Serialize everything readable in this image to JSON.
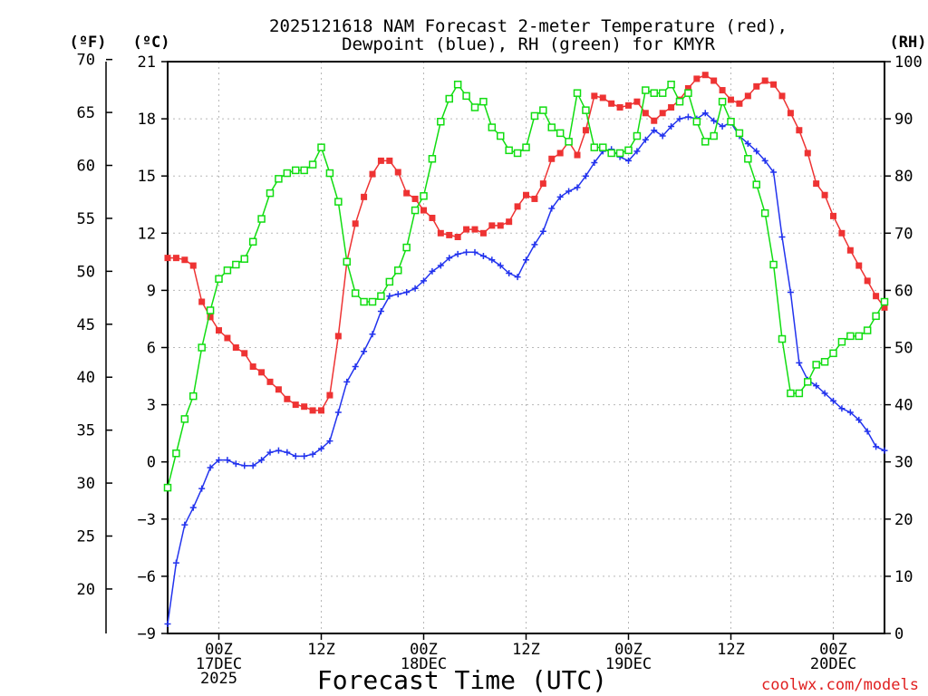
{
  "chart_data": {
    "type": "line",
    "title_line1": "2025121618 NAM Forecast 2-meter Temperature (red),",
    "title_line2": "Dewpoint (blue), RH (green) for KMYR",
    "xlabel": "Forecast Time (UTC)",
    "credit": "coolwx.com/models",
    "left_f_unit": "(ºF)",
    "left_c_unit": "(ºC)",
    "right_unit": "(RH)",
    "x_unit": "hours since 2025121618",
    "xlim": [
      0,
      84
    ],
    "celsius_axis": {
      "ylim": [
        -9,
        21
      ],
      "ticks": [
        -9,
        -6,
        -3,
        0,
        3,
        6,
        9,
        12,
        15,
        18,
        21
      ]
    },
    "fahrenheit_ticks": [
      20,
      25,
      30,
      35,
      40,
      45,
      50,
      55,
      60,
      65,
      70
    ],
    "rh_axis": {
      "ylim": [
        0,
        100
      ],
      "ticks": [
        0,
        10,
        20,
        30,
        40,
        50,
        60,
        70,
        80,
        90,
        100
      ]
    },
    "x_ticks": [
      {
        "hour": 6,
        "labels": [
          "00Z",
          "17DEC",
          "2025"
        ]
      },
      {
        "hour": 18,
        "labels": [
          "12Z"
        ]
      },
      {
        "hour": 30,
        "labels": [
          "00Z",
          "18DEC"
        ]
      },
      {
        "hour": 42,
        "labels": [
          "12Z"
        ]
      },
      {
        "hour": 54,
        "labels": [
          "00Z",
          "19DEC"
        ]
      },
      {
        "hour": 66,
        "labels": [
          "12Z"
        ]
      },
      {
        "hour": 78,
        "labels": [
          "00Z",
          "20DEC"
        ]
      }
    ],
    "series": [
      {
        "name": "Temperature",
        "unit": "°C",
        "color": "#ee3333",
        "marker": "filled-square",
        "points": [
          [
            0,
            10.7
          ],
          [
            1,
            10.7
          ],
          [
            2,
            10.6
          ],
          [
            3,
            10.3
          ],
          [
            4,
            8.4
          ],
          [
            5,
            7.6
          ],
          [
            6,
            6.9
          ],
          [
            7,
            6.5
          ],
          [
            8,
            6.0
          ],
          [
            9,
            5.7
          ],
          [
            10,
            5.0
          ],
          [
            11,
            4.7
          ],
          [
            12,
            4.2
          ],
          [
            13,
            3.8
          ],
          [
            14,
            3.3
          ],
          [
            15,
            3.0
          ],
          [
            16,
            2.9
          ],
          [
            17,
            2.7
          ],
          [
            18,
            2.7
          ],
          [
            19,
            3.5
          ],
          [
            20,
            6.6
          ],
          [
            21,
            10.5
          ],
          [
            22,
            12.5
          ],
          [
            23,
            13.9
          ],
          [
            24,
            15.1
          ],
          [
            25,
            15.8
          ],
          [
            26,
            15.8
          ],
          [
            27,
            15.2
          ],
          [
            28,
            14.1
          ],
          [
            29,
            13.8
          ],
          [
            30,
            13.2
          ],
          [
            31,
            12.8
          ],
          [
            32,
            12.0
          ],
          [
            33,
            11.9
          ],
          [
            34,
            11.8
          ],
          [
            35,
            12.2
          ],
          [
            36,
            12.2
          ],
          [
            37,
            12.0
          ],
          [
            38,
            12.4
          ],
          [
            39,
            12.4
          ],
          [
            40,
            12.6
          ],
          [
            41,
            13.4
          ],
          [
            42,
            14.0
          ],
          [
            43,
            13.8
          ],
          [
            44,
            14.6
          ],
          [
            45,
            15.9
          ],
          [
            46,
            16.2
          ],
          [
            47,
            16.8
          ],
          [
            48,
            16.1
          ],
          [
            49,
            17.4
          ],
          [
            50,
            19.2
          ],
          [
            51,
            19.1
          ],
          [
            52,
            18.8
          ],
          [
            53,
            18.6
          ],
          [
            54,
            18.7
          ],
          [
            55,
            18.9
          ],
          [
            56,
            18.3
          ],
          [
            57,
            17.9
          ],
          [
            58,
            18.3
          ],
          [
            59,
            18.6
          ],
          [
            60,
            19.0
          ],
          [
            61,
            19.6
          ],
          [
            62,
            20.1
          ],
          [
            63,
            20.3
          ],
          [
            64,
            20.0
          ],
          [
            65,
            19.5
          ],
          [
            66,
            19.0
          ],
          [
            67,
            18.8
          ],
          [
            68,
            19.2
          ],
          [
            69,
            19.7
          ],
          [
            70,
            20.0
          ],
          [
            71,
            19.8
          ],
          [
            72,
            19.2
          ],
          [
            73,
            18.3
          ],
          [
            74,
            17.4
          ],
          [
            75,
            16.2
          ],
          [
            76,
            14.6
          ],
          [
            77,
            14.0
          ],
          [
            78,
            12.9
          ],
          [
            79,
            12.0
          ],
          [
            80,
            11.1
          ],
          [
            81,
            10.3
          ],
          [
            82,
            9.5
          ],
          [
            83,
            8.7
          ],
          [
            84,
            8.1
          ]
        ]
      },
      {
        "name": "Dewpoint",
        "unit": "°C",
        "color": "#2233ee",
        "marker": "plus",
        "points": [
          [
            0,
            -8.5
          ],
          [
            1,
            -5.3
          ],
          [
            2,
            -3.3
          ],
          [
            3,
            -2.4
          ],
          [
            4,
            -1.4
          ],
          [
            5,
            -0.3
          ],
          [
            6,
            0.1
          ],
          [
            7,
            0.1
          ],
          [
            8,
            -0.1
          ],
          [
            9,
            -0.2
          ],
          [
            10,
            -0.2
          ],
          [
            11,
            0.1
          ],
          [
            12,
            0.5
          ],
          [
            13,
            0.6
          ],
          [
            14,
            0.5
          ],
          [
            15,
            0.3
          ],
          [
            16,
            0.3
          ],
          [
            17,
            0.4
          ],
          [
            18,
            0.7
          ],
          [
            19,
            1.1
          ],
          [
            20,
            2.6
          ],
          [
            21,
            4.2
          ],
          [
            22,
            5.0
          ],
          [
            23,
            5.8
          ],
          [
            24,
            6.7
          ],
          [
            25,
            7.9
          ],
          [
            26,
            8.7
          ],
          [
            27,
            8.8
          ],
          [
            28,
            8.9
          ],
          [
            29,
            9.1
          ],
          [
            30,
            9.5
          ],
          [
            31,
            10.0
          ],
          [
            32,
            10.3
          ],
          [
            33,
            10.7
          ],
          [
            34,
            10.9
          ],
          [
            35,
            11.0
          ],
          [
            36,
            11.0
          ],
          [
            37,
            10.8
          ],
          [
            38,
            10.6
          ],
          [
            39,
            10.3
          ],
          [
            40,
            9.9
          ],
          [
            41,
            9.7
          ],
          [
            42,
            10.6
          ],
          [
            43,
            11.4
          ],
          [
            44,
            12.1
          ],
          [
            45,
            13.3
          ],
          [
            46,
            13.9
          ],
          [
            47,
            14.2
          ],
          [
            48,
            14.4
          ],
          [
            49,
            15.0
          ],
          [
            50,
            15.7
          ],
          [
            51,
            16.3
          ],
          [
            52,
            16.4
          ],
          [
            53,
            16.0
          ],
          [
            54,
            15.8
          ],
          [
            55,
            16.3
          ],
          [
            56,
            16.9
          ],
          [
            57,
            17.4
          ],
          [
            58,
            17.1
          ],
          [
            59,
            17.6
          ],
          [
            60,
            18.0
          ],
          [
            61,
            18.1
          ],
          [
            62,
            18.0
          ],
          [
            63,
            18.3
          ],
          [
            64,
            17.9
          ],
          [
            65,
            17.6
          ],
          [
            66,
            17.8
          ],
          [
            67,
            17.1
          ],
          [
            68,
            16.7
          ],
          [
            69,
            16.3
          ],
          [
            70,
            15.8
          ],
          [
            71,
            15.2
          ],
          [
            72,
            11.8
          ],
          [
            73,
            8.9
          ],
          [
            74,
            5.2
          ],
          [
            75,
            4.3
          ],
          [
            76,
            4.0
          ],
          [
            77,
            3.6
          ],
          [
            78,
            3.2
          ],
          [
            79,
            2.8
          ],
          [
            80,
            2.6
          ],
          [
            81,
            2.2
          ],
          [
            82,
            1.6
          ],
          [
            83,
            0.8
          ],
          [
            84,
            0.6
          ]
        ]
      },
      {
        "name": "Relative Humidity",
        "unit": "%",
        "color": "#11dd11",
        "marker": "open-square",
        "points": [
          [
            0,
            25.5
          ],
          [
            1,
            31.5
          ],
          [
            2,
            37.5
          ],
          [
            3,
            41.5
          ],
          [
            4,
            50
          ],
          [
            5,
            56.5
          ],
          [
            6,
            62
          ],
          [
            7,
            63.5
          ],
          [
            8,
            64.5
          ],
          [
            9,
            65.5
          ],
          [
            10,
            68.5
          ],
          [
            11,
            72.5
          ],
          [
            12,
            77
          ],
          [
            13,
            79.5
          ],
          [
            14,
            80.5
          ],
          [
            15,
            81
          ],
          [
            16,
            81
          ],
          [
            17,
            82
          ],
          [
            18,
            85
          ],
          [
            19,
            80.5
          ],
          [
            20,
            75.5
          ],
          [
            21,
            65
          ],
          [
            22,
            59.5
          ],
          [
            23,
            58
          ],
          [
            24,
            58
          ],
          [
            25,
            59
          ],
          [
            26,
            61.5
          ],
          [
            27,
            63.5
          ],
          [
            28,
            67.5
          ],
          [
            29,
            74
          ],
          [
            30,
            76.5
          ],
          [
            31,
            83
          ],
          [
            32,
            89.5
          ],
          [
            33,
            93.5
          ],
          [
            34,
            96
          ],
          [
            35,
            94
          ],
          [
            36,
            92
          ],
          [
            37,
            93
          ],
          [
            38,
            88.5
          ],
          [
            39,
            87
          ],
          [
            40,
            84.5
          ],
          [
            41,
            84
          ],
          [
            42,
            85
          ],
          [
            43,
            90.5
          ],
          [
            44,
            91.5
          ],
          [
            45,
            88.5
          ],
          [
            46,
            87.5
          ],
          [
            47,
            86
          ],
          [
            48,
            94.5
          ],
          [
            49,
            91.5
          ],
          [
            50,
            85
          ],
          [
            51,
            85
          ],
          [
            52,
            84
          ],
          [
            53,
            84
          ],
          [
            54,
            84.5
          ],
          [
            55,
            87
          ],
          [
            56,
            95
          ],
          [
            57,
            94.5
          ],
          [
            58,
            94.5
          ],
          [
            59,
            96
          ],
          [
            60,
            93
          ],
          [
            61,
            94.5
          ],
          [
            62,
            89.5
          ],
          [
            63,
            86
          ],
          [
            64,
            87
          ],
          [
            65,
            93
          ],
          [
            66,
            89.5
          ],
          [
            67,
            87.5
          ],
          [
            68,
            83
          ],
          [
            69,
            78.5
          ],
          [
            70,
            73.5
          ],
          [
            71,
            64.5
          ],
          [
            72,
            51.5
          ],
          [
            73,
            42
          ],
          [
            74,
            42
          ],
          [
            75,
            44
          ],
          [
            76,
            47
          ],
          [
            77,
            47.5
          ],
          [
            78,
            49
          ],
          [
            79,
            51
          ],
          [
            80,
            52
          ],
          [
            81,
            52
          ],
          [
            82,
            53
          ],
          [
            83,
            55.5
          ],
          [
            84,
            58
          ]
        ]
      }
    ]
  }
}
